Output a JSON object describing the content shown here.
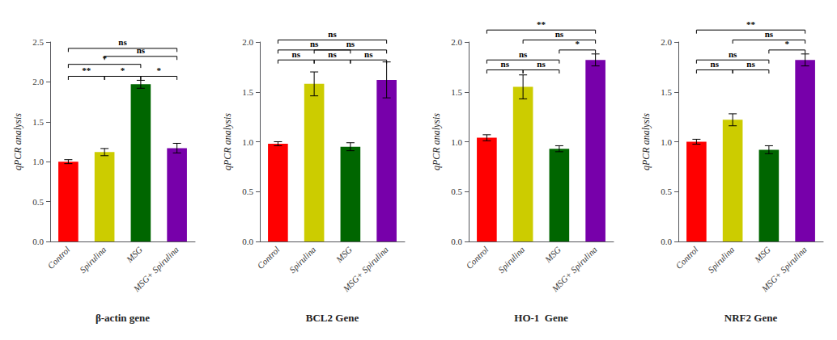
{
  "chart_data": [
    {
      "type": "bar",
      "xlabel": "β-actin gene",
      "ylabel": "qPCR analysis",
      "categories": [
        "Control",
        "Spirulina",
        "MSG",
        "MSG+ Spirulina"
      ],
      "values": [
        1.0,
        1.12,
        1.97,
        1.17
      ],
      "errors": [
        0.025,
        0.045,
        0.05,
        0.06
      ],
      "colors": [
        "#ff0000",
        "#cccc00",
        "#006600",
        "#7700aa"
      ],
      "ylim": [
        0,
        2.5
      ],
      "yticks": [
        {
          "value": 0,
          "label": "0.0"
        },
        0.5,
        {
          "value": 1,
          "label": "1.0"
        },
        1.5,
        {
          "value": 2,
          "label": "2.0"
        },
        2.5
      ],
      "grid": false,
      "brackets": [
        {
          "from": "Control",
          "to": "Spirulina",
          "y": 2.07,
          "label": "**"
        },
        {
          "from": "Spirulina",
          "to": "MSG",
          "y": 2.07,
          "label": "*"
        },
        {
          "from": "MSG",
          "to": "MSG+ Spirulina",
          "y": 2.07,
          "label": "*"
        },
        {
          "from": "Control",
          "to": "MSG",
          "y": 2.22,
          "label": "*"
        },
        {
          "from": "Spirulina",
          "to": "MSG+ Spirulina",
          "y": 2.32,
          "label": "ns"
        },
        {
          "from": "Control",
          "to": "MSG+ Spirulina",
          "y": 2.42,
          "label": "ns"
        }
      ]
    },
    {
      "type": "bar",
      "xlabel": "BCL2 Gene",
      "ylabel": "qPCR analysis",
      "categories": [
        "Control",
        "Spirulina",
        "MSG",
        "MSG+ Spirulina"
      ],
      "values": [
        0.98,
        1.58,
        0.95,
        1.62
      ],
      "errors": [
        0.02,
        0.12,
        0.04,
        0.18
      ],
      "colors": [
        "#ff0000",
        "#cccc00",
        "#006600",
        "#7700aa"
      ],
      "ylim": [
        0,
        2.0
      ],
      "yticks": [
        {
          "value": 0,
          "label": "0.0"
        },
        0.5,
        {
          "value": 1,
          "label": "1.0"
        },
        1.5,
        {
          "value": 2,
          "label": "2.0"
        }
      ],
      "grid": false,
      "brackets": [
        {
          "from": "Control",
          "to": "Spirulina",
          "y": 1.82,
          "label": "ns"
        },
        {
          "from": "Spirulina",
          "to": "MSG",
          "y": 1.82,
          "label": "ns"
        },
        {
          "from": "MSG",
          "to": "MSG+ Spirulina",
          "y": 1.82,
          "label": "ns"
        },
        {
          "from": "Control",
          "to": "MSG",
          "y": 1.92,
          "label": "ns"
        },
        {
          "from": "Spirulina",
          "to": "MSG+ Spirulina",
          "y": 1.92,
          "label": "ns"
        },
        {
          "from": "Control",
          "to": "MSG+ Spirulina",
          "y": 2.02,
          "label": "ns"
        }
      ]
    },
    {
      "type": "bar",
      "xlabel": "HO-1  Gene",
      "ylabel": "qPCR analysis",
      "categories": [
        "Control",
        "Spirulina",
        "MSG",
        "MSG+ Spirulina"
      ],
      "values": [
        1.04,
        1.55,
        0.93,
        1.82
      ],
      "errors": [
        0.03,
        0.12,
        0.03,
        0.06
      ],
      "colors": [
        "#ff0000",
        "#cccc00",
        "#006600",
        "#7700aa"
      ],
      "ylim": [
        0,
        2.0
      ],
      "yticks": [
        {
          "value": 0,
          "label": "0.0"
        },
        0.5,
        {
          "value": 1,
          "label": "1.0"
        },
        1.5,
        {
          "value": 2,
          "label": "2.0"
        }
      ],
      "grid": false,
      "brackets": [
        {
          "from": "Control",
          "to": "Spirulina",
          "y": 1.72,
          "label": "ns"
        },
        {
          "from": "Spirulina",
          "to": "MSG",
          "y": 1.72,
          "label": "ns"
        },
        {
          "from": "MSG",
          "to": "MSG+ Spirulina",
          "y": 1.92,
          "label": "*"
        },
        {
          "from": "Control",
          "to": "MSG",
          "y": 1.82,
          "label": "ns"
        },
        {
          "from": "Spirulina",
          "to": "MSG+ Spirulina",
          "y": 2.02,
          "label": "ns"
        },
        {
          "from": "Control",
          "to": "MSG+ Spirulina",
          "y": 2.12,
          "label": "**"
        }
      ]
    },
    {
      "type": "bar",
      "xlabel": "NRF2 Gene",
      "ylabel": "qPCR analysis",
      "categories": [
        "Control",
        "Spirulina",
        "MSG",
        "MSG+ Spirulina"
      ],
      "values": [
        1.0,
        1.22,
        0.92,
        1.82
      ],
      "errors": [
        0.025,
        0.06,
        0.04,
        0.06
      ],
      "colors": [
        "#ff0000",
        "#cccc00",
        "#006600",
        "#7700aa"
      ],
      "ylim": [
        0,
        2.0
      ],
      "yticks": [
        {
          "value": 0,
          "label": "0.0"
        },
        0.5,
        {
          "value": 1,
          "label": "1.0"
        },
        1.5,
        {
          "value": 2,
          "label": "2.0"
        }
      ],
      "grid": false,
      "brackets": [
        {
          "from": "Control",
          "to": "Spirulina",
          "y": 1.72,
          "label": "ns"
        },
        {
          "from": "Spirulina",
          "to": "MSG",
          "y": 1.72,
          "label": "ns"
        },
        {
          "from": "MSG",
          "to": "MSG+ Spirulina",
          "y": 1.92,
          "label": "*"
        },
        {
          "from": "Control",
          "to": "MSG",
          "y": 1.82,
          "label": "ns"
        },
        {
          "from": "Spirulina",
          "to": "MSG+ Spirulina",
          "y": 2.02,
          "label": "ns"
        },
        {
          "from": "Control",
          "to": "MSG+ Spirulina",
          "y": 2.12,
          "label": "**"
        }
      ]
    }
  ]
}
